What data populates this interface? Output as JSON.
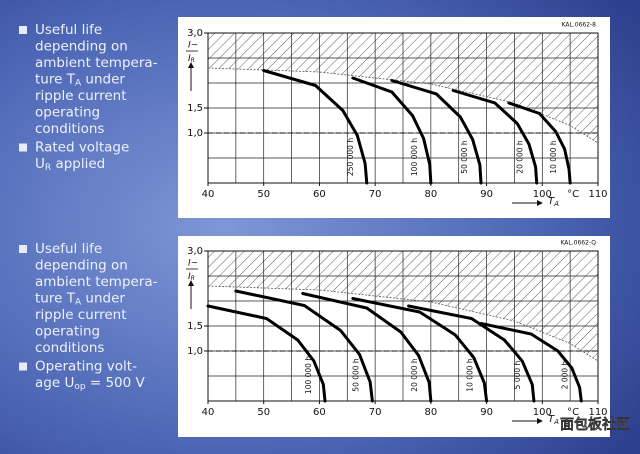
{
  "left_text": [
    {
      "bullets": [
        [
          [
            "Useful life"
          ],
          [
            "depending on"
          ],
          [
            "ambient tempera-"
          ],
          [
            "ture T",
            "A",
            " under"
          ],
          [
            "ripple current"
          ],
          [
            "operating"
          ],
          [
            "conditions"
          ]
        ],
        [
          [
            "Rated voltage"
          ],
          [
            "U",
            "R",
            " applied"
          ]
        ]
      ]
    },
    {
      "bullets": [
        [
          [
            "Useful life"
          ],
          [
            "depending on"
          ],
          [
            "ambient tempera-"
          ],
          [
            "ture T",
            "A",
            " under"
          ],
          [
            "ripple current"
          ],
          [
            "operating"
          ],
          [
            "conditions"
          ]
        ],
        [
          [
            "Operating volt-"
          ],
          [
            "age U",
            "op",
            " = 500 V"
          ]
        ]
      ]
    }
  ],
  "chart_data": [
    {
      "type": "line",
      "code": "KAL.0662-8",
      "y_label": [
        "I~",
        "I",
        "R"
      ],
      "x_label": [
        "T",
        "A"
      ],
      "x_unit": "°C",
      "xlim": [
        40,
        110
      ],
      "xticks": [
        40,
        50,
        60,
        70,
        80,
        90,
        100,
        110
      ],
      "ylim": [
        0,
        3
      ],
      "yticks": [
        {
          "value": 3,
          "label": "3,0"
        },
        {
          "value": 1.5,
          "label": "1,5"
        },
        {
          "value": 1,
          "label": "1,0"
        }
      ],
      "grid": true,
      "grid_x_step": 5,
      "grid_y_step": 0.5,
      "hline": 1,
      "boundary": {
        "x": [
          40,
          60,
          80,
          95,
          105,
          110
        ],
        "values": [
          2.3,
          2.22,
          1.98,
          1.6,
          1.15,
          0.8
        ]
      },
      "series": [
        {
          "name": "250 000 h",
          "color": "#000000",
          "x": [
            50,
            59.3,
            64.2,
            66.8,
            68.2,
            68.5
          ],
          "values": [
            2.25,
            1.95,
            1.45,
            0.95,
            0.39,
            0
          ]
        },
        {
          "name": "100 000 h",
          "color": "#000000",
          "x": [
            66,
            73,
            76.7,
            78.7,
            79.8,
            80
          ],
          "values": [
            2.1,
            1.82,
            1.35,
            0.89,
            0.37,
            0
          ]
        },
        {
          "name": "50 000 h",
          "color": "#000000",
          "x": [
            73,
            81,
            85.3,
            87.5,
            88.8,
            89
          ],
          "values": [
            2.05,
            1.78,
            1.32,
            0.87,
            0.36,
            0
          ]
        },
        {
          "name": "20 000 h",
          "color": "#000000",
          "x": [
            84,
            91.5,
            95.5,
            97.6,
            98.8,
            99
          ],
          "values": [
            1.85,
            1.6,
            1.19,
            0.78,
            0.32,
            0
          ]
        },
        {
          "name": "10 000 h",
          "color": "#000000",
          "x": [
            94,
            99.5,
            102.4,
            104,
            104.8,
            105
          ],
          "values": [
            1.6,
            1.39,
            1.03,
            0.68,
            0.28,
            0
          ]
        }
      ]
    },
    {
      "type": "line",
      "code": "KAL.0662-Q",
      "y_label": [
        "I~",
        "I",
        "R"
      ],
      "x_label": [
        "T",
        "A"
      ],
      "x_unit": "°C",
      "xlim": [
        40,
        110
      ],
      "xticks": [
        40,
        50,
        60,
        70,
        80,
        90,
        100,
        110
      ],
      "ylim": [
        0,
        3
      ],
      "yticks": [
        {
          "value": 3,
          "label": "3,0"
        },
        {
          "value": 1.5,
          "label": "1,5"
        },
        {
          "value": 1,
          "label": "1,0"
        }
      ],
      "grid": true,
      "grid_x_step": 5,
      "grid_y_step": 0.5,
      "hline": 1,
      "boundary": {
        "x": [
          40,
          60,
          80,
          95,
          105,
          110
        ],
        "values": [
          2.3,
          2.22,
          1.98,
          1.6,
          1.15,
          0.8
        ]
      },
      "series": [
        {
          "name": "100 000 h",
          "color": "#000000",
          "x": [
            40,
            50.5,
            56.1,
            59,
            60.7,
            61
          ],
          "values": [
            1.9,
            1.65,
            1.22,
            0.8,
            0.33,
            0
          ]
        },
        {
          "name": "50 000 h",
          "color": "#000000",
          "x": [
            45,
            57.3,
            63.8,
            67.2,
            69.1,
            69.5
          ],
          "values": [
            2.2,
            1.91,
            1.41,
            0.93,
            0.38,
            0
          ]
        },
        {
          "name": "20 000 h",
          "color": "#000000",
          "x": [
            57,
            68.5,
            74.6,
            77.8,
            79.7,
            80
          ],
          "values": [
            2.15,
            1.86,
            1.38,
            0.91,
            0.37,
            0
          ]
        },
        {
          "name": "10 000 h",
          "color": "#000000",
          "x": [
            66,
            78,
            84.4,
            87.7,
            89.6,
            90
          ],
          "values": [
            2.05,
            1.78,
            1.32,
            0.87,
            0.36,
            0
          ]
        },
        {
          "name": "5 000 h",
          "color": "#000000",
          "x": [
            76,
            87.3,
            93.2,
            96.4,
            98.2,
            98.5
          ],
          "values": [
            1.9,
            1.65,
            1.22,
            0.8,
            0.33,
            0
          ]
        },
        {
          "name": "2 000 h",
          "color": "#000000",
          "x": [
            89,
            98,
            102.8,
            105.3,
            106.7,
            107
          ],
          "values": [
            1.55,
            1.34,
            1.0,
            0.66,
            0.27,
            0
          ]
        }
      ]
    }
  ],
  "watermark": "面包板社区"
}
